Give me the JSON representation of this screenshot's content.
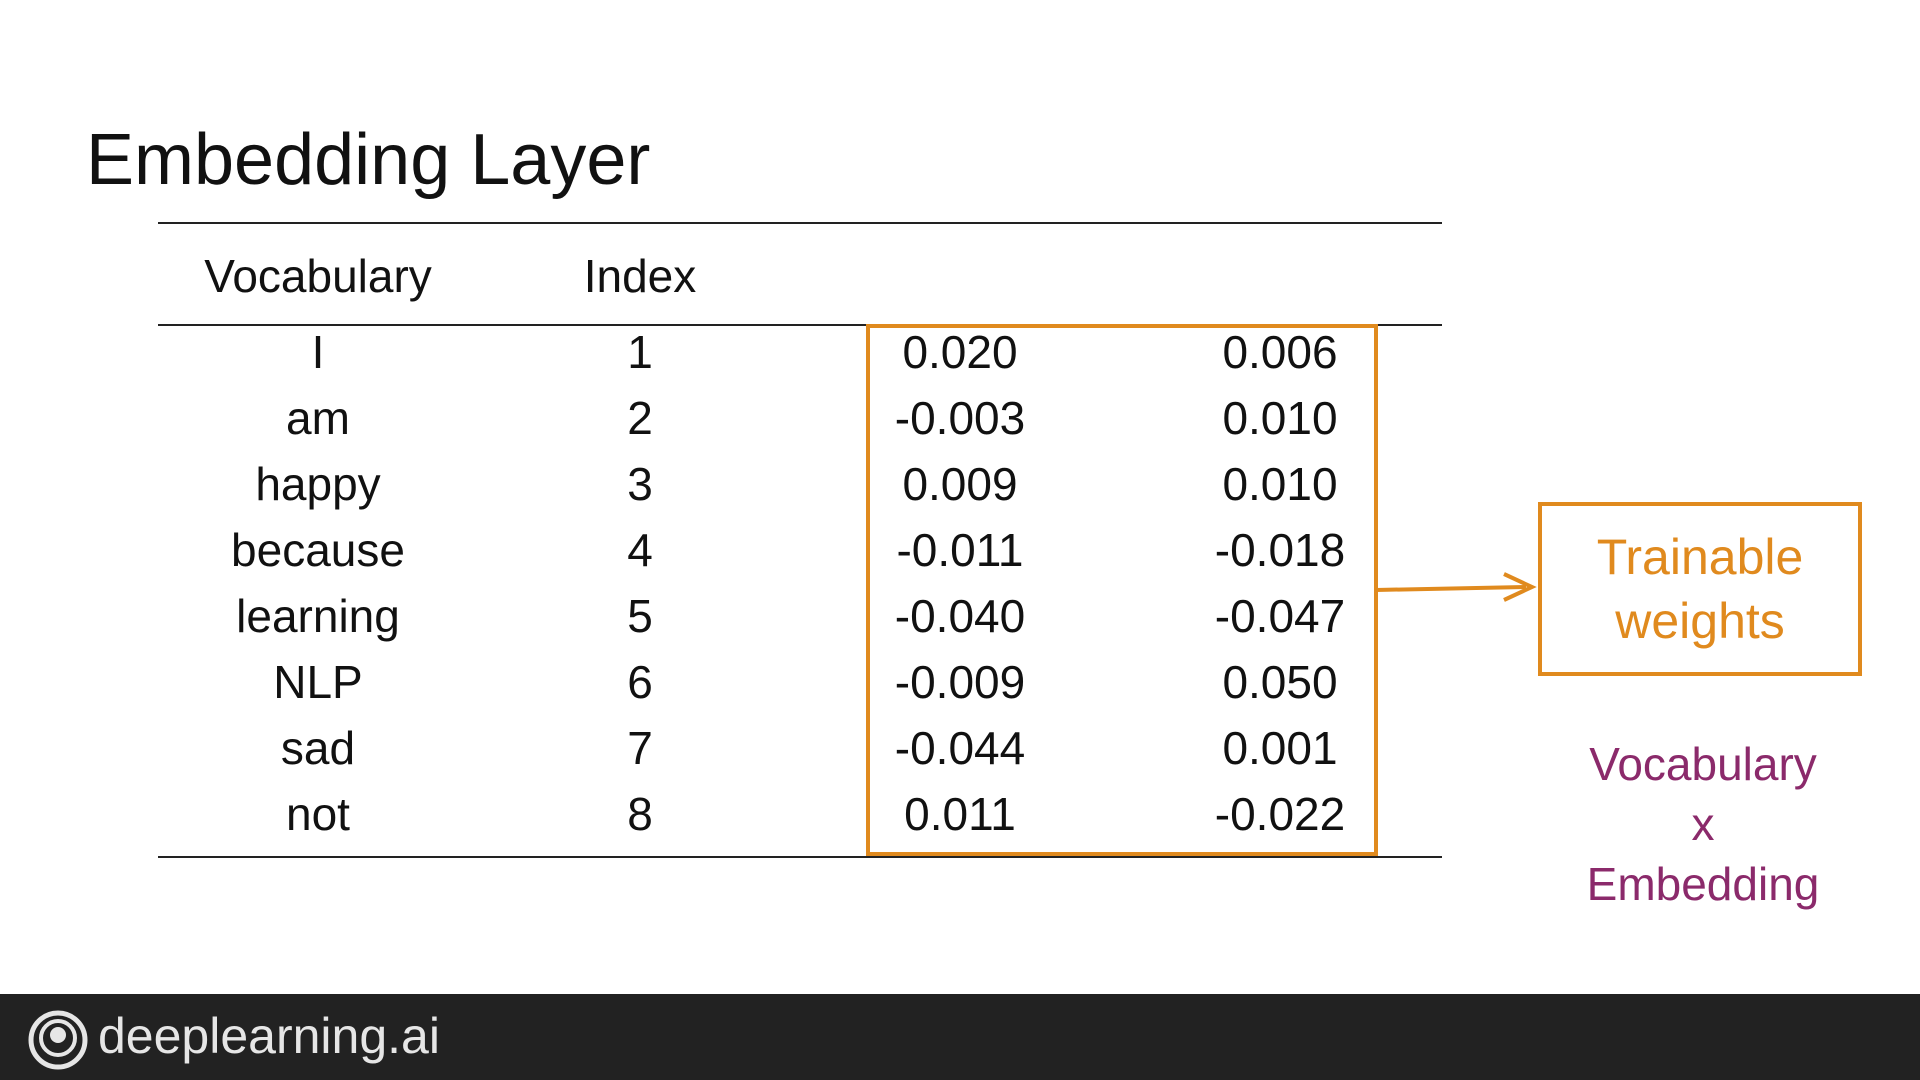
{
  "slide": {
    "title": "Embedding Layer"
  },
  "table": {
    "headers": {
      "vocabulary": "Vocabulary",
      "index": "Index"
    },
    "rows": [
      {
        "word": "I",
        "index": "1",
        "w1": "0.020",
        "w2": "0.006"
      },
      {
        "word": "am",
        "index": "2",
        "w1": "-0.003",
        "w2": "0.010"
      },
      {
        "word": "happy",
        "index": "3",
        "w1": "0.009",
        "w2": "0.010"
      },
      {
        "word": "because",
        "index": "4",
        "w1": "-0.011",
        "w2": "-0.018"
      },
      {
        "word": "learning",
        "index": "5",
        "w1": "-0.040",
        "w2": "-0.047"
      },
      {
        "word": "NLP",
        "index": "6",
        "w1": "-0.009",
        "w2": "0.050"
      },
      {
        "word": "sad",
        "index": "7",
        "w1": "-0.044",
        "w2": "0.001"
      },
      {
        "word": "not",
        "index": "8",
        "w1": "0.011",
        "w2": "-0.022"
      }
    ]
  },
  "annotation": {
    "trainable_line1": "Trainable",
    "trainable_line2": "weights",
    "dims_line1": "Vocabulary",
    "dims_line2": "x",
    "dims_line3": "Embedding"
  },
  "footer": {
    "brand": "deeplearning.ai"
  },
  "colors": {
    "accent_orange": "#e08a1e",
    "accent_purple": "#8b2a6b",
    "footer_bg": "#222222"
  },
  "icons": {
    "logo": "deeplearning-logo-icon",
    "arrow": "arrow-right-icon"
  }
}
